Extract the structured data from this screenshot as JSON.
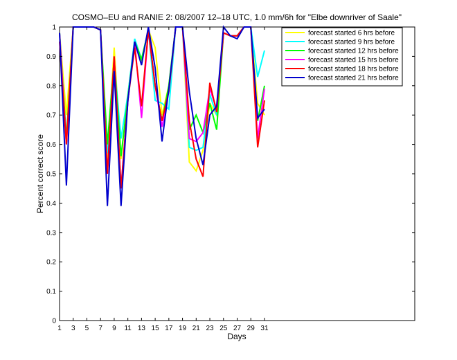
{
  "chart_data": {
    "type": "line",
    "title": "COSMO–EU and RANIE 2: 08/2007 12–18 UTC, 1.0 mm/6h for \"Elbe downriver of Saale\"",
    "xlabel": "Days",
    "ylabel": "Percent correct score",
    "xlim": [
      1,
      53
    ],
    "ylim": [
      0,
      1
    ],
    "xticks": [
      1,
      3,
      5,
      7,
      9,
      11,
      13,
      15,
      17,
      19,
      21,
      23,
      25,
      27,
      29,
      31
    ],
    "yticks": [
      0,
      0.1,
      0.2,
      0.3,
      0.4,
      0.5,
      0.6,
      0.7,
      0.8,
      0.9,
      1
    ],
    "ytick_labels": [
      "0",
      "0.1",
      "0.2",
      "0.3",
      "0.4",
      "0.5",
      "0.6",
      "0.7",
      "0.8",
      "0.9",
      "1"
    ],
    "legend_position": "top-right",
    "x": [
      1,
      2,
      3,
      4,
      5,
      6,
      7,
      8,
      9,
      10,
      11,
      12,
      13,
      14,
      15,
      16,
      17,
      18,
      19,
      20,
      21,
      22,
      23,
      24,
      25,
      26,
      27,
      28,
      29,
      30,
      31
    ],
    "series": [
      {
        "name": "forecast started 6 hrs before",
        "color": "#ffff00",
        "values": [
          0.98,
          0.7,
          1.0,
          1.0,
          1.0,
          1.0,
          0.99,
          0.55,
          0.93,
          0.55,
          0.77,
          0.95,
          0.88,
          0.99,
          0.93,
          0.7,
          0.8,
          1.0,
          1.0,
          0.54,
          0.51,
          0.58,
          0.74,
          0.7,
          0.98,
          0.97,
          0.97,
          1.0,
          1.0,
          0.74,
          0.7
        ]
      },
      {
        "name": "forecast started 9 hrs before",
        "color": "#00ffff",
        "values": [
          0.98,
          0.6,
          1.0,
          1.0,
          1.0,
          1.0,
          0.99,
          0.57,
          0.88,
          0.62,
          0.77,
          0.96,
          0.89,
          0.99,
          0.75,
          0.74,
          0.72,
          1.0,
          1.0,
          0.59,
          0.58,
          0.59,
          0.77,
          0.7,
          0.98,
          0.97,
          0.97,
          1.0,
          1.0,
          0.83,
          0.92
        ]
      },
      {
        "name": "forecast started 12 hrs before",
        "color": "#00ff00",
        "values": [
          0.98,
          0.62,
          1.0,
          1.0,
          1.0,
          1.0,
          0.99,
          0.6,
          0.89,
          0.56,
          0.76,
          0.95,
          0.89,
          0.99,
          0.8,
          0.68,
          0.8,
          1.0,
          1.0,
          0.65,
          0.7,
          0.64,
          0.74,
          0.65,
          0.98,
          0.97,
          0.97,
          1.0,
          1.0,
          0.68,
          0.8
        ]
      },
      {
        "name": "forecast started 15 hrs before",
        "color": "#ff00ff",
        "values": [
          0.98,
          0.6,
          1.0,
          1.0,
          1.0,
          1.0,
          0.99,
          0.5,
          0.9,
          0.45,
          0.75,
          0.95,
          0.69,
          0.99,
          0.8,
          0.66,
          0.78,
          1.0,
          1.0,
          0.62,
          0.61,
          0.64,
          0.79,
          0.72,
          0.98,
          0.97,
          0.97,
          1.0,
          1.0,
          0.62,
          0.79
        ]
      },
      {
        "name": "forecast started 18 hrs before",
        "color": "#ff0000",
        "values": [
          0.95,
          0.6,
          1.0,
          1.0,
          1.0,
          1.0,
          0.99,
          0.5,
          0.9,
          0.45,
          0.75,
          0.93,
          0.73,
          0.99,
          0.8,
          0.68,
          0.78,
          1.0,
          1.0,
          0.68,
          0.55,
          0.49,
          0.81,
          0.71,
          0.98,
          0.97,
          0.97,
          1.0,
          1.0,
          0.59,
          0.75
        ]
      },
      {
        "name": "forecast started 21 hrs before",
        "color": "#0000cc",
        "values": [
          0.98,
          0.46,
          1.0,
          1.0,
          1.0,
          1.0,
          0.99,
          0.39,
          0.85,
          0.39,
          0.75,
          0.95,
          0.87,
          1.0,
          0.86,
          0.61,
          0.79,
          1.0,
          1.0,
          0.78,
          0.62,
          0.53,
          0.7,
          0.73,
          1.0,
          0.97,
          0.96,
          1.0,
          1.0,
          0.69,
          0.72
        ]
      }
    ]
  }
}
